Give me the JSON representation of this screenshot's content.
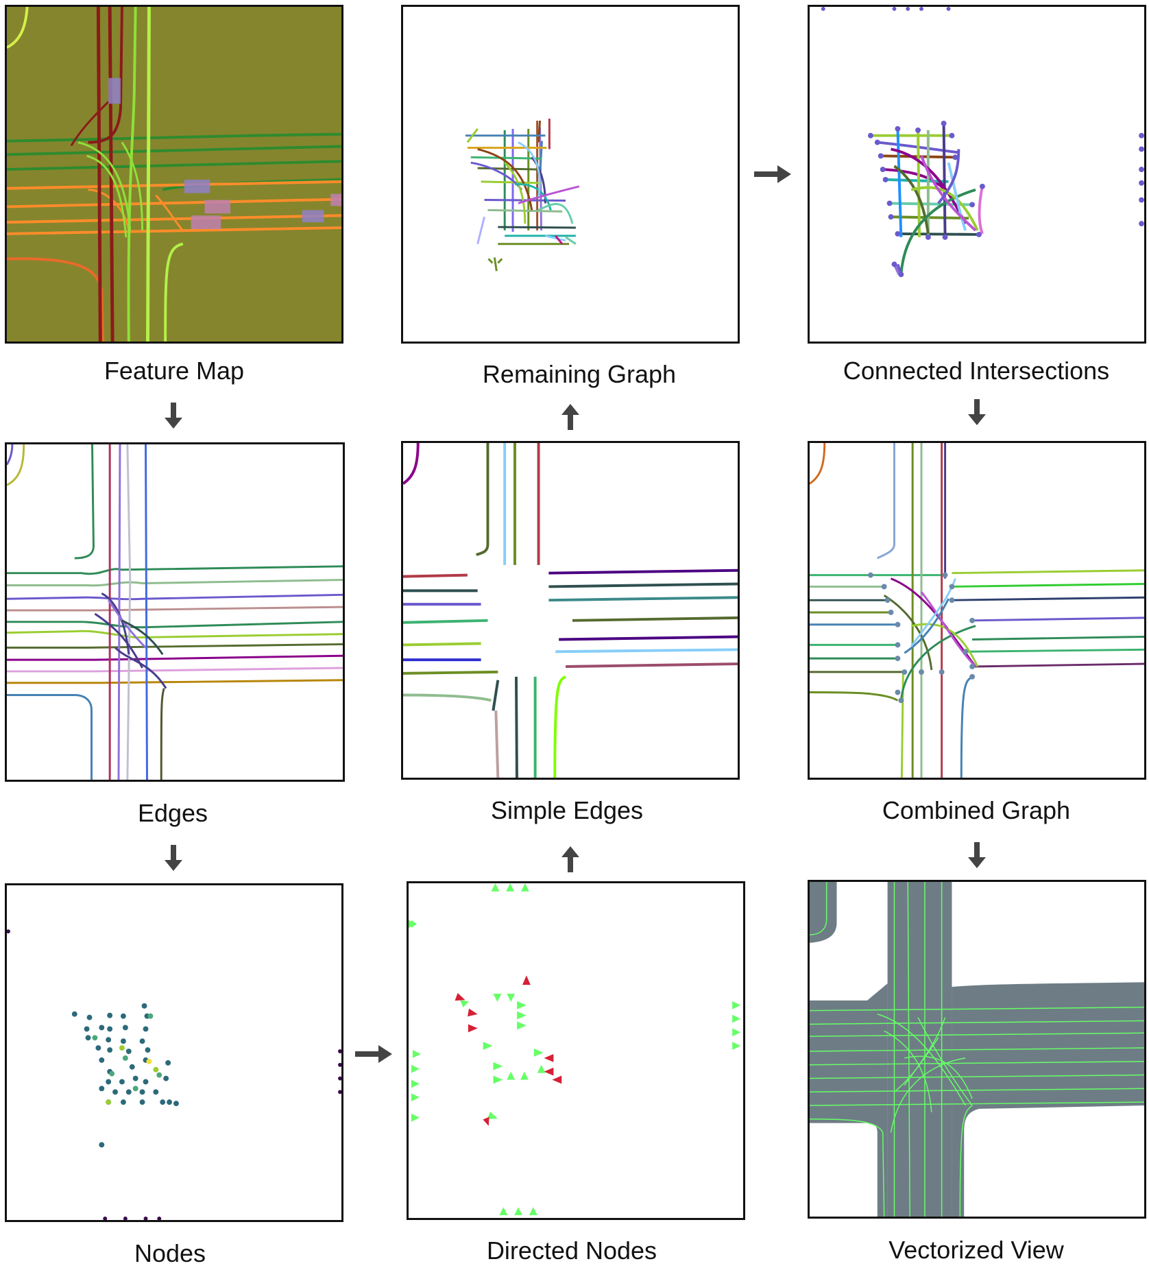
{
  "figure": {
    "panels": {
      "feature_map": {
        "label": "Feature Map"
      },
      "remaining_graph": {
        "label": "Remaining Graph"
      },
      "connected_intersections": {
        "label": "Connected Intersections"
      },
      "edges": {
        "label": "Edges"
      },
      "simple_edges": {
        "label": "Simple Edges"
      },
      "combined_graph": {
        "label": "Combined Graph"
      },
      "nodes": {
        "label": "Nodes"
      },
      "directed_nodes": {
        "label": "Directed Nodes"
      },
      "vectorized_view": {
        "label": "Vectorized View"
      }
    },
    "colors": {
      "feature_bg": "#85852d",
      "arrow": "#444444",
      "road": "#6e7d85",
      "lane_green": "#66ff66",
      "node_red": "#d62035",
      "node_green": "#66ff66"
    }
  }
}
